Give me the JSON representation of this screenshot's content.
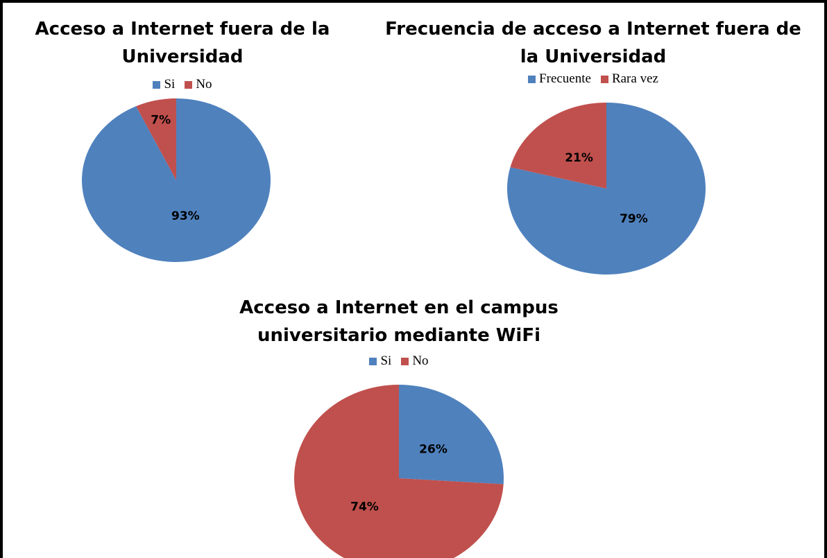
{
  "chart_data": [
    {
      "type": "pie",
      "title": "Acceso a Internet fuera de la Universidad",
      "categories": [
        "Si",
        "No"
      ],
      "values": [
        93,
        7
      ],
      "value_labels": [
        "93%",
        "7%"
      ],
      "colors": [
        "#4f81bd",
        "#c0504d"
      ],
      "legend": "top"
    },
    {
      "type": "pie",
      "title": "Frecuencia de acceso a Internet fuera de la Universidad",
      "categories": [
        "Frecuente",
        "Rara vez"
      ],
      "values": [
        79,
        21
      ],
      "value_labels": [
        "79%",
        "21%"
      ],
      "colors": [
        "#4f81bd",
        "#c0504d"
      ],
      "legend": "top"
    },
    {
      "type": "pie",
      "title": "Acceso a Internet en el campus universitario mediante WiFi",
      "categories": [
        "Si",
        "No"
      ],
      "values": [
        26,
        74
      ],
      "value_labels": [
        "26%",
        "74%"
      ],
      "colors": [
        "#4f81bd",
        "#c0504d"
      ],
      "legend": "top"
    }
  ]
}
